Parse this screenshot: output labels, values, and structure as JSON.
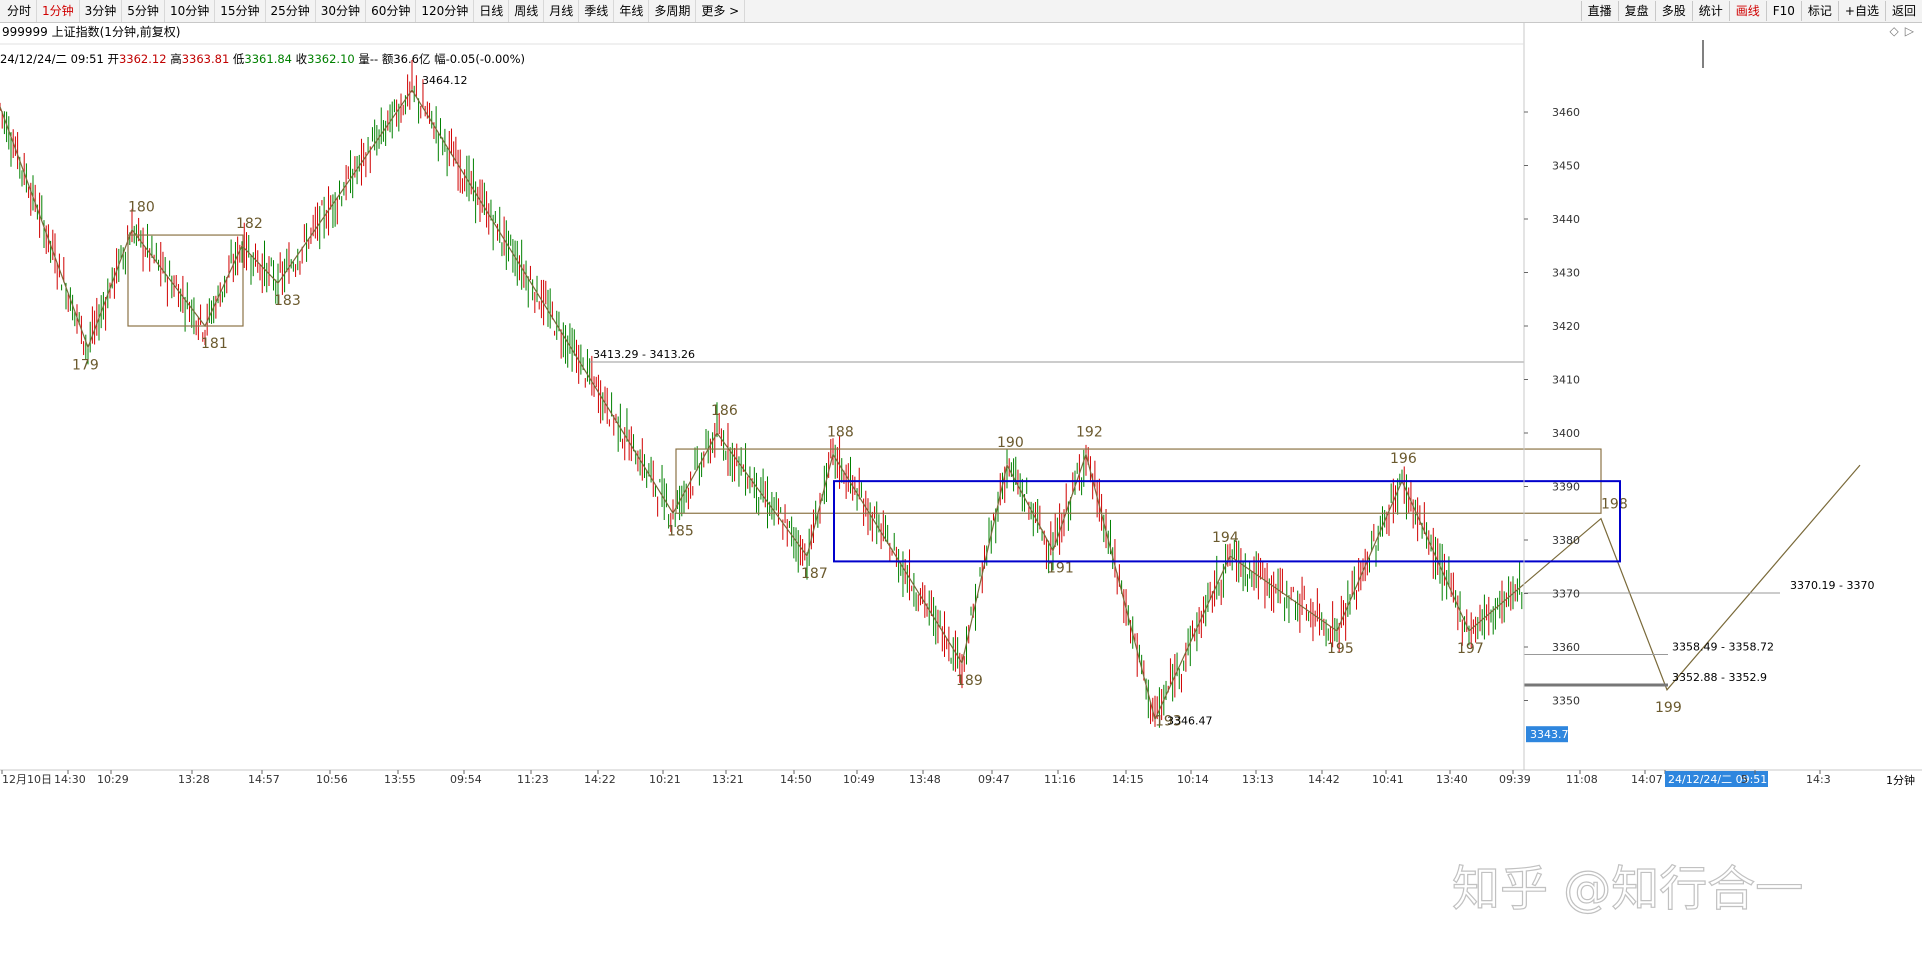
{
  "toolbar": {
    "period_tabs": [
      "分时",
      "1分钟",
      "3分钟",
      "5分钟",
      "10分钟",
      "15分钟",
      "25分钟",
      "30分钟",
      "60分钟",
      "120分钟",
      "日线",
      "周线",
      "月线",
      "季线",
      "年线",
      "多周期",
      "更多 >"
    ],
    "active_period": "1分钟",
    "right_buttons": [
      "直播",
      "复盘",
      "多股",
      "统计",
      "画线",
      "F10",
      "标记",
      "+自选",
      "返回"
    ],
    "active_right": "画线"
  },
  "title": "999999 上证指数(1分钟,前复权)",
  "top_icons": [
    "◇",
    "▷"
  ],
  "info": {
    "date": "24/12/24/二 09:51",
    "open_label": "开",
    "open": "3362.12",
    "high_label": "高",
    "high": "3363.81",
    "low_label": "低",
    "low": "3361.84",
    "close_label": "收",
    "close": "3362.10",
    "volume": "量-- 额36.6亿",
    "change": "幅-0.05(-0.00%)"
  },
  "watermark": "知乎 @知行合一",
  "chart_data": {
    "type": "candlestick",
    "period_label": "1分钟",
    "ylim": [
      3340,
      3470
    ],
    "y_ticks": [
      3350,
      3360,
      3370,
      3380,
      3390,
      3400,
      3410,
      3420,
      3430,
      3440,
      3450,
      3460
    ],
    "last_price_label": "3343.7",
    "x_labels": [
      "12月10日",
      "14:30",
      "10:29",
      "13:28",
      "14:57",
      "10:56",
      "13:55",
      "09:54",
      "11:23",
      "14:22",
      "10:21",
      "13:21",
      "14:50",
      "10:49",
      "13:48",
      "09:47",
      "11:16",
      "14:15",
      "10:14",
      "13:13",
      "14:42",
      "10:41",
      "13:40",
      "09:39",
      "11:08",
      "14:07",
      "24/12/24/二 09:51",
      "5",
      "14:3"
    ],
    "zigzag": [
      {
        "label": "",
        "y": 3461
      },
      {
        "label": "179",
        "y": 3416
      },
      {
        "label": "180",
        "y": 3438
      },
      {
        "label": "181",
        "y": 3420
      },
      {
        "label": "182",
        "y": 3435
      },
      {
        "label": "183",
        "y": 3428
      },
      {
        "label": "3464.12",
        "y": 3464.12
      },
      {
        "label": "185",
        "y": 3385
      },
      {
        "label": "186",
        "y": 3400
      },
      {
        "label": "187",
        "y": 3377
      },
      {
        "label": "188",
        "y": 3396
      },
      {
        "label": "189",
        "y": 3357
      },
      {
        "label": "190",
        "y": 3394
      },
      {
        "label": "191",
        "y": 3378
      },
      {
        "label": "192",
        "y": 3396
      },
      {
        "label": "193",
        "y": 3346.47
      },
      {
        "label": "194",
        "y": 3377
      },
      {
        "label": "195",
        "y": 3363
      },
      {
        "label": "196",
        "y": 3391
      },
      {
        "label": "197",
        "y": 3363
      },
      {
        "label": "198",
        "y": 3384
      },
      {
        "label": "199",
        "y": 3352
      },
      {
        "label": "",
        "y": 3394
      }
    ],
    "low_label_193": "3346.47",
    "horizontal_lines": [
      {
        "label": "3413.29 - 3413.26",
        "y": 3413.27
      },
      {
        "label": "3370.19 - 3370",
        "y": 3370.1
      },
      {
        "label": "3358.49 - 3358.72",
        "y": 3358.6
      },
      {
        "label": "3352.88 - 3352.9",
        "y": 3352.9
      }
    ],
    "rectangles": [
      {
        "name": "box-180-181",
        "y_top": 3437,
        "y_bottom": 3420,
        "color": "#8b7345"
      },
      {
        "name": "box-185-198",
        "y_top": 3397,
        "y_bottom": 3385,
        "color": "#8b7345"
      },
      {
        "name": "box-blue",
        "y_top": 3391,
        "y_bottom": 3376,
        "color": "#0000cc"
      }
    ],
    "colors": {
      "up": "#d00000",
      "down": "#008000",
      "line": "#7a6a3a",
      "label": "#6b5a2e",
      "box": "#8b7345",
      "blue": "#0000cc",
      "grid": "#c8c8c8"
    }
  }
}
